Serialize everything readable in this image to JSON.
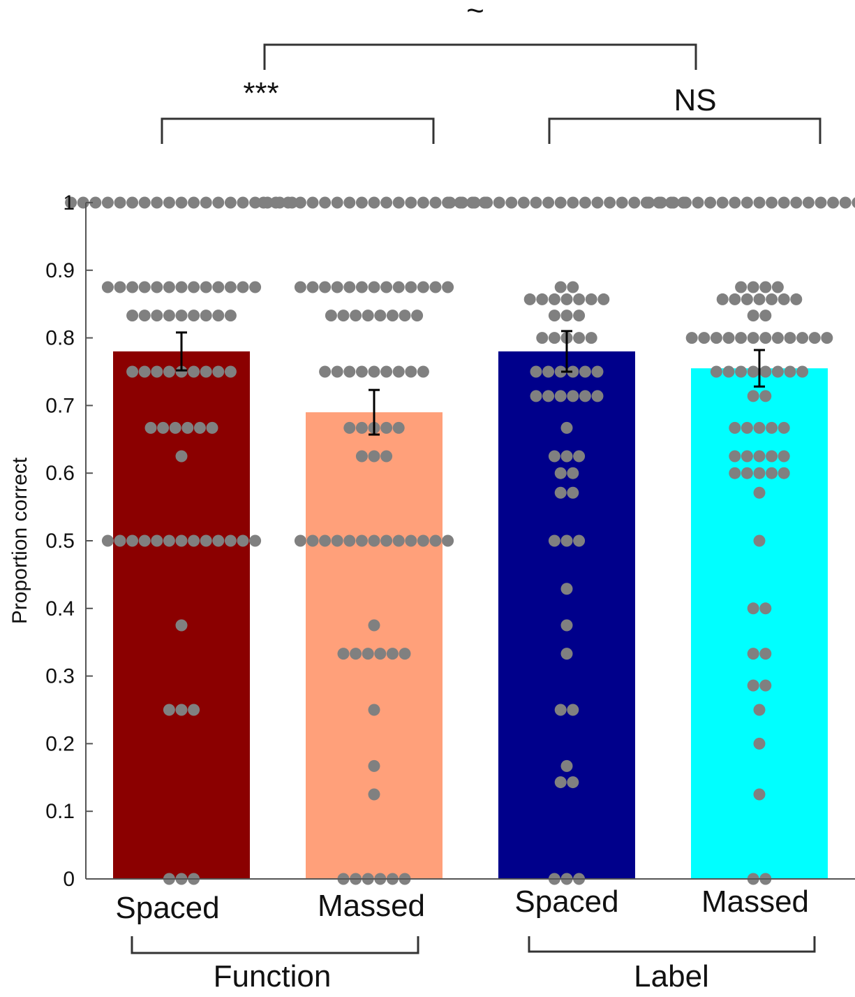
{
  "chart_data": {
    "type": "bar",
    "ylabel": "Proportion correct",
    "ylim": [
      0,
      1
    ],
    "yticks": [
      "0",
      "0.1",
      "0.2",
      "0.3",
      "0.4",
      "0.5",
      "0.6",
      "0.7",
      "0.8",
      "0.9",
      "1"
    ],
    "categories": [
      "Spaced",
      "Massed",
      "Spaced",
      "Massed"
    ],
    "groups": [
      {
        "label": "Function",
        "categories": [
          0,
          1
        ]
      },
      {
        "label": "Label",
        "categories": [
          2,
          3
        ]
      }
    ],
    "colors": [
      "#8b0000",
      "#ffa07a",
      "#00008b",
      "#00ffff"
    ],
    "point_color": "#808080",
    "bars": [
      {
        "category": "Spaced",
        "group": "Function",
        "value": 0.78,
        "error": 0.028,
        "points": [
          {
            "y": 1.0,
            "n": 19
          },
          {
            "y": 0.875,
            "n": 13
          },
          {
            "y": 0.833,
            "n": 9
          },
          {
            "y": 0.75,
            "n": 9
          },
          {
            "y": 0.667,
            "n": 6
          },
          {
            "y": 0.625,
            "n": 1
          },
          {
            "y": 0.5,
            "n": 13
          },
          {
            "y": 0.375,
            "n": 1
          },
          {
            "y": 0.25,
            "n": 3
          },
          {
            "y": 0.0,
            "n": 3
          }
        ]
      },
      {
        "category": "Massed",
        "group": "Function",
        "value": 0.69,
        "error": 0.033,
        "points": [
          {
            "y": 1.0,
            "n": 19
          },
          {
            "y": 0.875,
            "n": 13
          },
          {
            "y": 0.833,
            "n": 8
          },
          {
            "y": 0.75,
            "n": 9
          },
          {
            "y": 0.667,
            "n": 5
          },
          {
            "y": 0.625,
            "n": 3
          },
          {
            "y": 0.5,
            "n": 13
          },
          {
            "y": 0.375,
            "n": 1
          },
          {
            "y": 0.333,
            "n": 6
          },
          {
            "y": 0.25,
            "n": 1
          },
          {
            "y": 0.167,
            "n": 1
          },
          {
            "y": 0.125,
            "n": 1
          },
          {
            "y": 0.0,
            "n": 6
          }
        ]
      },
      {
        "category": "Spaced",
        "group": "Label",
        "value": 0.78,
        "error": 0.03,
        "points": [
          {
            "y": 1.0,
            "n": 20
          },
          {
            "y": 0.875,
            "n": 2
          },
          {
            "y": 0.857,
            "n": 7
          },
          {
            "y": 0.833,
            "n": 3
          },
          {
            "y": 0.8,
            "n": 5
          },
          {
            "y": 0.75,
            "n": 6
          },
          {
            "y": 0.714,
            "n": 6
          },
          {
            "y": 0.667,
            "n": 1
          },
          {
            "y": 0.625,
            "n": 3
          },
          {
            "y": 0.6,
            "n": 2
          },
          {
            "y": 0.571,
            "n": 2
          },
          {
            "y": 0.5,
            "n": 3
          },
          {
            "y": 0.429,
            "n": 1
          },
          {
            "y": 0.375,
            "n": 1
          },
          {
            "y": 0.333,
            "n": 1
          },
          {
            "y": 0.25,
            "n": 2
          },
          {
            "y": 0.167,
            "n": 1
          },
          {
            "y": 0.143,
            "n": 2
          },
          {
            "y": 0.0,
            "n": 3
          }
        ]
      },
      {
        "category": "Massed",
        "group": "Label",
        "value": 0.755,
        "error": 0.027,
        "points": [
          {
            "y": 1.0,
            "n": 19
          },
          {
            "y": 0.875,
            "n": 4
          },
          {
            "y": 0.857,
            "n": 7
          },
          {
            "y": 0.833,
            "n": 2
          },
          {
            "y": 0.8,
            "n": 12
          },
          {
            "y": 0.75,
            "n": 8
          },
          {
            "y": 0.714,
            "n": 2
          },
          {
            "y": 0.667,
            "n": 5
          },
          {
            "y": 0.625,
            "n": 5
          },
          {
            "y": 0.6,
            "n": 5
          },
          {
            "y": 0.571,
            "n": 1
          },
          {
            "y": 0.5,
            "n": 1
          },
          {
            "y": 0.4,
            "n": 2
          },
          {
            "y": 0.333,
            "n": 2
          },
          {
            "y": 0.286,
            "n": 2
          },
          {
            "y": 0.25,
            "n": 1
          },
          {
            "y": 0.2,
            "n": 1
          },
          {
            "y": 0.125,
            "n": 1
          },
          {
            "y": 0.0,
            "n": 2
          }
        ]
      }
    ],
    "significance": [
      {
        "label": "***",
        "between": [
          0,
          1
        ]
      },
      {
        "label": "NS",
        "between": [
          2,
          3
        ]
      },
      {
        "label": "~",
        "between": [
          "Function",
          "Label"
        ]
      }
    ],
    "grid": false,
    "legend": "none"
  }
}
